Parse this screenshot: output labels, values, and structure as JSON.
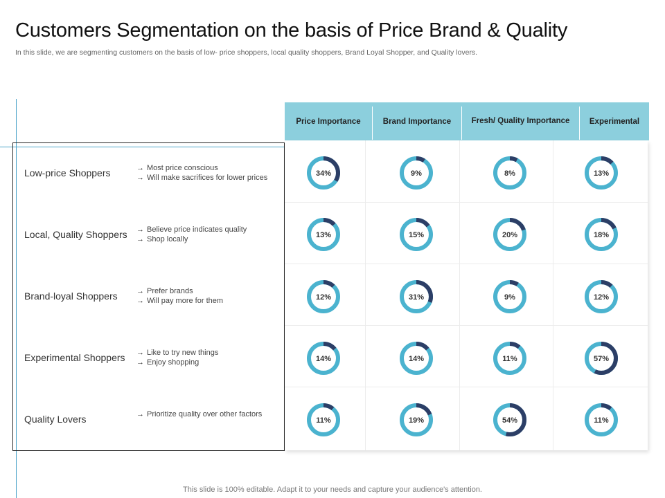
{
  "title": "Customers Segmentation on the basis of Price Brand & Quality",
  "subtitle": "In this slide, we are segmenting customers on the basis of low- price shoppers, local quality shoppers, Brand Loyal Shopper, and Quality lovers.",
  "colors": {
    "header_bg": "#8ccfdd",
    "donut_track": "#4bb3cf",
    "donut_value": "#2c3e66",
    "accent_line": "#4aa3c8"
  },
  "columns": [
    "Price Importance",
    "Brand Importance",
    "Fresh/ Quality Importance",
    "Experimental"
  ],
  "segments": [
    {
      "name": "Low-price Shoppers",
      "traits": [
        "Most price conscious",
        "Will make sacrifices for lower prices"
      ],
      "arrow": "→"
    },
    {
      "name": "Local, Quality Shoppers",
      "traits": [
        "Believe price indicates quality",
        "Shop locally"
      ],
      "arrow": "→"
    },
    {
      "name": "Brand-loyal Shoppers",
      "traits": [
        "Prefer brands",
        "Will pay more for them"
      ],
      "arrow": "→"
    },
    {
      "name": "Experimental Shoppers",
      "traits": [
        "Like to try new things",
        "Enjoy shopping"
      ],
      "arrow": "→"
    },
    {
      "name": "Quality Lovers",
      "traits": [
        "Prioritize quality over other factors"
      ],
      "arrow": "→"
    }
  ],
  "chart_data": {
    "type": "heatmap",
    "rows": [
      "Low-price Shoppers",
      "Local, Quality Shoppers",
      "Brand-loyal Shoppers",
      "Experimental Shoppers",
      "Quality Lovers"
    ],
    "columns": [
      "Price Importance",
      "Brand Importance",
      "Fresh/ Quality Importance",
      "Experimental"
    ],
    "values": [
      [
        34,
        9,
        8,
        13
      ],
      [
        13,
        15,
        20,
        18
      ],
      [
        12,
        31,
        9,
        12
      ],
      [
        14,
        14,
        11,
        57
      ],
      [
        11,
        19,
        54,
        11
      ]
    ],
    "labels": [
      [
        "34%",
        "9%",
        "8%",
        "13%"
      ],
      [
        "13%",
        "15%",
        "20%",
        "18%"
      ],
      [
        "12%",
        "31%",
        "9%",
        "12%"
      ],
      [
        "14%",
        "14%",
        "11%",
        "57%"
      ],
      [
        "11%",
        "19%",
        "54%",
        "11%"
      ]
    ]
  },
  "footer": "This slide is 100% editable. Adapt it to your needs and capture your audience's attention."
}
